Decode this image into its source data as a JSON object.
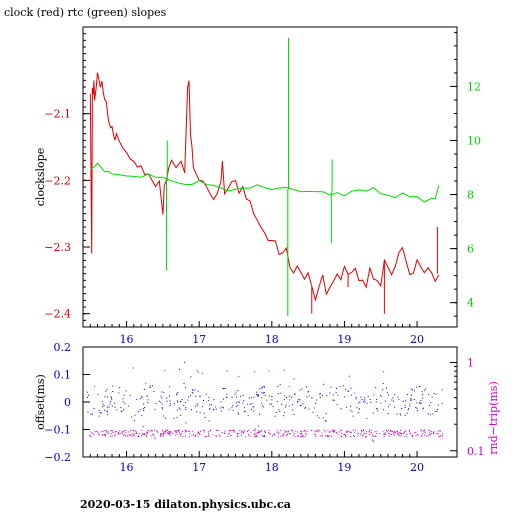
{
  "title": "clock (red) rtc (green) slopes",
  "footer": "2020-03-15 dilaton.physics.ubc.ca",
  "colors": {
    "clock": "#e00000",
    "rtc": "#00dd00",
    "offset": "#0000cc",
    "rndtrip": "#cc00cc",
    "axis_left_top": "#cc0000",
    "axis_right_top": "#00cc00",
    "axis_left_bottom": "#0000cc",
    "axis_right_bottom": "#cc00cc",
    "x_ticks": "#0000cc"
  },
  "chart_data": [
    {
      "type": "line",
      "title": "clock (red) rtc (green) slopes",
      "ylabel": "clockslope",
      "xlim": [
        15.4,
        20.55
      ],
      "ylim": [
        -2.42,
        -1.97
      ],
      "y2lim": [
        3.1,
        14.2
      ],
      "xticks": [
        16,
        17,
        18,
        19,
        20
      ],
      "yticks": [
        -2.4,
        -2.3,
        -2.2,
        -2.1
      ],
      "ytick_labels": [
        "−2.4",
        "−2.3",
        "−2.2",
        "−2.1"
      ],
      "y2ticks": [
        4,
        6,
        8,
        10,
        12
      ],
      "y2tick_labels": [
        "4",
        "6",
        "8",
        "10",
        "12"
      ],
      "series": [
        {
          "axis": "left",
          "x": [
            15.5,
            15.52,
            15.53,
            15.54,
            15.55,
            15.56,
            15.58,
            15.6,
            15.62,
            15.64,
            15.66,
            15.68,
            15.7,
            15.72,
            15.75,
            15.78,
            15.8,
            15.82,
            15.84,
            15.86,
            15.9,
            15.95,
            16.0,
            16.05,
            16.1,
            16.15,
            16.2,
            16.25,
            16.3,
            16.35,
            16.4,
            16.45,
            16.5,
            16.52,
            16.55,
            16.58,
            16.62,
            16.68,
            16.75,
            16.8,
            16.84,
            16.86,
            16.88,
            16.9,
            16.92,
            16.95,
            17.0,
            17.05,
            17.1,
            17.15,
            17.2,
            17.25,
            17.3,
            17.32,
            17.35,
            17.4,
            17.45,
            17.5,
            17.55,
            17.6,
            17.65,
            17.7,
            17.75,
            17.8,
            17.85,
            17.9,
            17.95,
            18.0,
            18.05,
            18.1,
            18.15,
            18.2,
            18.25,
            18.3,
            18.35,
            18.4,
            18.45,
            18.5,
            18.55,
            18.6,
            18.65,
            18.7,
            18.75,
            18.8,
            18.85,
            18.9,
            18.95,
            19.0,
            19.05,
            19.1,
            19.15,
            19.2,
            19.25,
            19.3,
            19.35,
            19.4,
            19.45,
            19.5,
            19.55,
            19.6,
            19.65,
            19.7,
            19.75,
            19.8,
            19.85,
            19.9,
            19.95,
            20.0,
            20.05,
            20.1,
            20.15,
            20.2,
            20.25,
            20.3
          ],
          "y": [
            -2.07,
            -2.31,
            -2.06,
            -2.07,
            -2.05,
            -2.08,
            -2.06,
            -2.04,
            -2.05,
            -2.06,
            -2.05,
            -2.07,
            -2.08,
            -2.08,
            -2.11,
            -2.12,
            -2.12,
            -2.13,
            -2.14,
            -2.13,
            -2.14,
            -2.15,
            -2.16,
            -2.17,
            -2.17,
            -2.18,
            -2.18,
            -2.19,
            -2.19,
            -2.2,
            -2.21,
            -2.2,
            -2.25,
            -2.21,
            -2.2,
            -2.18,
            -2.17,
            -2.18,
            -2.17,
            -2.19,
            -2.06,
            -2.05,
            -2.13,
            -2.15,
            -2.18,
            -2.19,
            -2.2,
            -2.2,
            -2.21,
            -2.22,
            -2.23,
            -2.22,
            -2.2,
            -2.17,
            -2.22,
            -2.21,
            -2.2,
            -2.2,
            -2.22,
            -2.21,
            -2.23,
            -2.23,
            -2.25,
            -2.26,
            -2.27,
            -2.28,
            -2.29,
            -2.29,
            -2.29,
            -2.31,
            -2.31,
            -2.3,
            -2.33,
            -2.34,
            -2.33,
            -2.34,
            -2.35,
            -2.34,
            -2.36,
            -2.38,
            -2.36,
            -2.34,
            -2.37,
            -2.36,
            -2.35,
            -2.34,
            -2.35,
            -2.33,
            -2.34,
            -2.34,
            -2.33,
            -2.35,
            -2.35,
            -2.36,
            -2.33,
            -2.35,
            -2.35,
            -2.36,
            -2.32,
            -2.33,
            -2.34,
            -2.33,
            -2.31,
            -2.3,
            -2.32,
            -2.34,
            -2.34,
            -2.32,
            -2.33,
            -2.34,
            -2.33,
            -2.34,
            -2.35,
            -2.34
          ],
          "spikes": [
            [
              15.51,
              -2.31
            ],
            [
              16.55,
              -2.27
            ],
            [
              18.55,
              -2.4
            ],
            [
              19.05,
              -2.36
            ],
            [
              19.55,
              -2.4
            ],
            [
              20.28,
              -2.27
            ]
          ]
        },
        {
          "axis": "right",
          "x": [
            15.5,
            15.55,
            15.6,
            15.65,
            15.7,
            15.75,
            15.8,
            15.9,
            16.0,
            16.1,
            16.2,
            16.3,
            16.4,
            16.5,
            16.6,
            16.7,
            16.8,
            16.9,
            17.0,
            17.1,
            17.2,
            17.3,
            17.4,
            17.5,
            17.6,
            17.7,
            17.8,
            17.9,
            18.0,
            18.1,
            18.2,
            18.3,
            18.4,
            18.5,
            18.6,
            18.7,
            18.8,
            18.9,
            19.0,
            19.1,
            19.2,
            19.3,
            19.4,
            19.5,
            19.6,
            19.7,
            19.8,
            19.9,
            20.0,
            20.1,
            20.2,
            20.25,
            20.3
          ],
          "y": [
            8.9,
            9.0,
            9.1,
            9.0,
            8.9,
            8.8,
            8.8,
            8.8,
            8.7,
            8.7,
            8.6,
            8.7,
            8.7,
            8.6,
            8.5,
            8.5,
            8.4,
            8.4,
            8.5,
            8.3,
            8.4,
            8.3,
            8.2,
            8.2,
            8.3,
            8.3,
            8.3,
            8.2,
            8.2,
            8.2,
            8.2,
            8.2,
            8.1,
            8.1,
            8.1,
            8.1,
            8.0,
            8.1,
            8.0,
            8.1,
            8.1,
            8.2,
            8.2,
            8.1,
            8.0,
            7.9,
            8.0,
            7.9,
            7.9,
            7.8,
            7.9,
            7.9,
            8.3
          ],
          "spikes": [
            [
              16.55,
              5.2
            ],
            [
              16.56,
              10.0
            ],
            [
              18.22,
              3.5
            ],
            [
              18.23,
              13.8
            ],
            [
              18.82,
              6.2
            ],
            [
              18.83,
              9.3
            ]
          ]
        }
      ]
    },
    {
      "type": "scatter",
      "ylabel": "offset(ms)",
      "y2label": "rnd−trip(ms)",
      "xlim": [
        15.4,
        20.55
      ],
      "ylim": [
        -0.2,
        0.2
      ],
      "y2lim": [
        0.085,
        1.5
      ],
      "y2scale": "log",
      "xticks": [
        16,
        17,
        18,
        19,
        20
      ],
      "yticks": [
        -0.2,
        -0.1,
        0,
        0.1,
        0.2
      ],
      "ytick_labels": [
        "−0.2",
        "−0.1",
        "0",
        "0.1",
        "0.2"
      ],
      "y2ticks": [
        0.1,
        1
      ],
      "y2tick_labels": [
        "0.1",
        "1"
      ],
      "series": [
        {
          "axis": "left",
          "marker": "dot",
          "x_range": [
            15.45,
            20.35
          ],
          "y_center": 0.0,
          "y_spread": 0.05
        },
        {
          "axis": "right",
          "marker": "dot",
          "x_range": [
            15.45,
            20.35
          ],
          "y_center": 0.16,
          "y_spread": 0.015
        }
      ]
    }
  ],
  "top_plot": {
    "ylabel": "clockslope"
  },
  "bottom_plot": {
    "ylabel": "offset(ms)",
    "y2label": "rnd−trip(ms)"
  }
}
